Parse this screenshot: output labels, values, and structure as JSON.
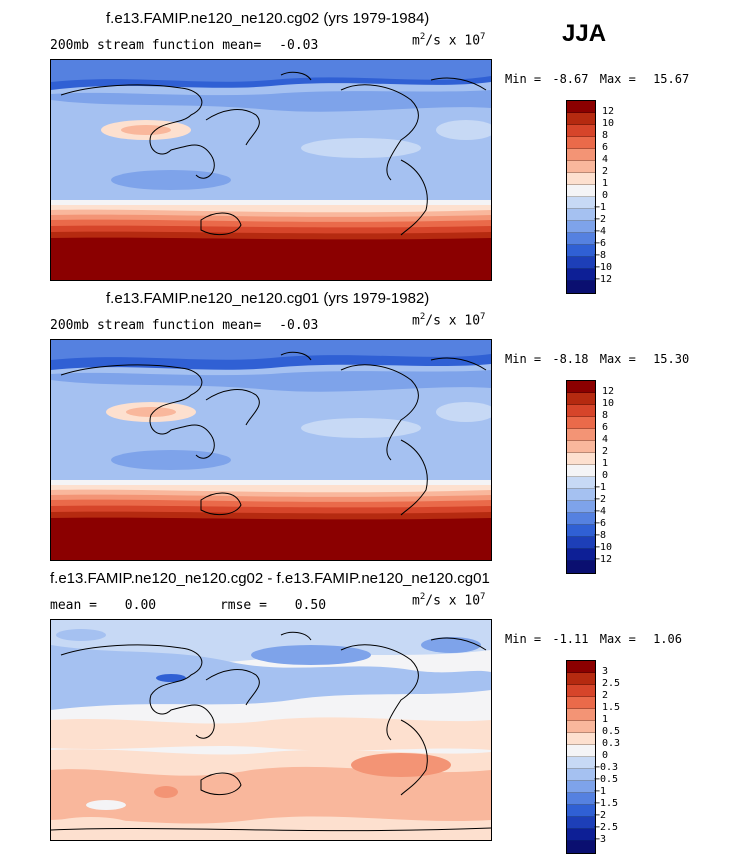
{
  "season": "JJA",
  "panels": [
    {
      "title": "f.e13.FAMIP.ne120_ne120.cg02 (yrs 1979-1984)",
      "left_label": "200mb stream function",
      "mean_label": "mean=",
      "mean_value": "-0.03",
      "units_base": "m",
      "units_exp1": "2",
      "units_mid": "/s x 10",
      "units_exp2": "7",
      "min_label": "Min =",
      "min_value": "-8.67",
      "max_label": "Max =",
      "max_value": "15.67",
      "colorbar_labels": [
        "12",
        "10",
        "8",
        "6",
        "4",
        "2",
        "1",
        "0",
        "-1",
        "-2",
        "-4",
        "-6",
        "-8",
        "-10",
        "-12"
      ]
    },
    {
      "title": "f.e13.FAMIP.ne120_ne120.cg01 (yrs 1979-1982)",
      "left_label": "200mb stream function",
      "mean_label": "mean=",
      "mean_value": "-0.03",
      "units_base": "m",
      "units_exp1": "2",
      "units_mid": "/s x 10",
      "units_exp2": "7",
      "min_label": "Min =",
      "min_value": "-8.18",
      "max_label": "Max =",
      "max_value": "15.30",
      "colorbar_labels": [
        "12",
        "10",
        "8",
        "6",
        "4",
        "2",
        "1",
        "0",
        "-1",
        "-2",
        "-4",
        "-6",
        "-8",
        "-10",
        "-12"
      ]
    },
    {
      "title": "f.e13.FAMIP.ne120_ne120.cg02 - f.e13.FAMIP.ne120_ne120.cg01",
      "mean_label": "mean =",
      "mean_value": "0.00",
      "rmse_label": "rmse =",
      "rmse_value": "0.50",
      "units_base": "m",
      "units_exp1": "2",
      "units_mid": "/s x 10",
      "units_exp2": "7",
      "min_label": "Min =",
      "min_value": "-1.11",
      "max_label": "Max =",
      "max_value": "1.06",
      "colorbar_labels": [
        "3",
        "2.5",
        "2",
        "1.5",
        "1",
        "0.5",
        "0.3",
        "0",
        "-0.3",
        "-0.5",
        "-1",
        "-1.5",
        "-2",
        "-2.5",
        "-3"
      ]
    }
  ],
  "colors": {
    "colorbar": [
      "#8b0000",
      "#b52a10",
      "#d6452a",
      "#ea6a4a",
      "#f39475",
      "#f9b79c",
      "#fde0cf",
      "#f4f4f6",
      "#c7d9f5",
      "#a5c1f1",
      "#7ea3ea",
      "#5581e0",
      "#3060d4",
      "#1d3fb8",
      "#0d1f96",
      "#0a0f70"
    ]
  },
  "chart_data": [
    {
      "type": "heatmap",
      "title": "f.e13.FAMIP.ne120_ne120.cg02 (yrs 1979-1984)",
      "variable": "200mb stream function",
      "season": "JJA",
      "units": "m^2/s x 10^7",
      "mean": -0.03,
      "min": -8.67,
      "max": 15.67,
      "levels": [
        -12,
        -10,
        -8,
        -6,
        -4,
        -2,
        -1,
        0,
        1,
        2,
        4,
        6,
        8,
        10,
        12
      ]
    },
    {
      "type": "heatmap",
      "title": "f.e13.FAMIP.ne120_ne120.cg01 (yrs 1979-1982)",
      "variable": "200mb stream function",
      "season": "JJA",
      "units": "m^2/s x 10^7",
      "mean": -0.03,
      "min": -8.18,
      "max": 15.3,
      "levels": [
        -12,
        -10,
        -8,
        -6,
        -4,
        -2,
        -1,
        0,
        1,
        2,
        4,
        6,
        8,
        10,
        12
      ]
    },
    {
      "type": "heatmap",
      "title": "f.e13.FAMIP.ne120_ne120.cg02 - f.e13.FAMIP.ne120_ne120.cg01",
      "variable": "difference",
      "season": "JJA",
      "units": "m^2/s x 10^7",
      "mean": 0.0,
      "rmse": 0.5,
      "min": -1.11,
      "max": 1.06,
      "levels": [
        -3,
        -2.5,
        -2,
        -1.5,
        -1,
        -0.5,
        -0.3,
        0,
        0.3,
        0.5,
        1,
        1.5,
        2,
        2.5,
        3
      ]
    }
  ]
}
